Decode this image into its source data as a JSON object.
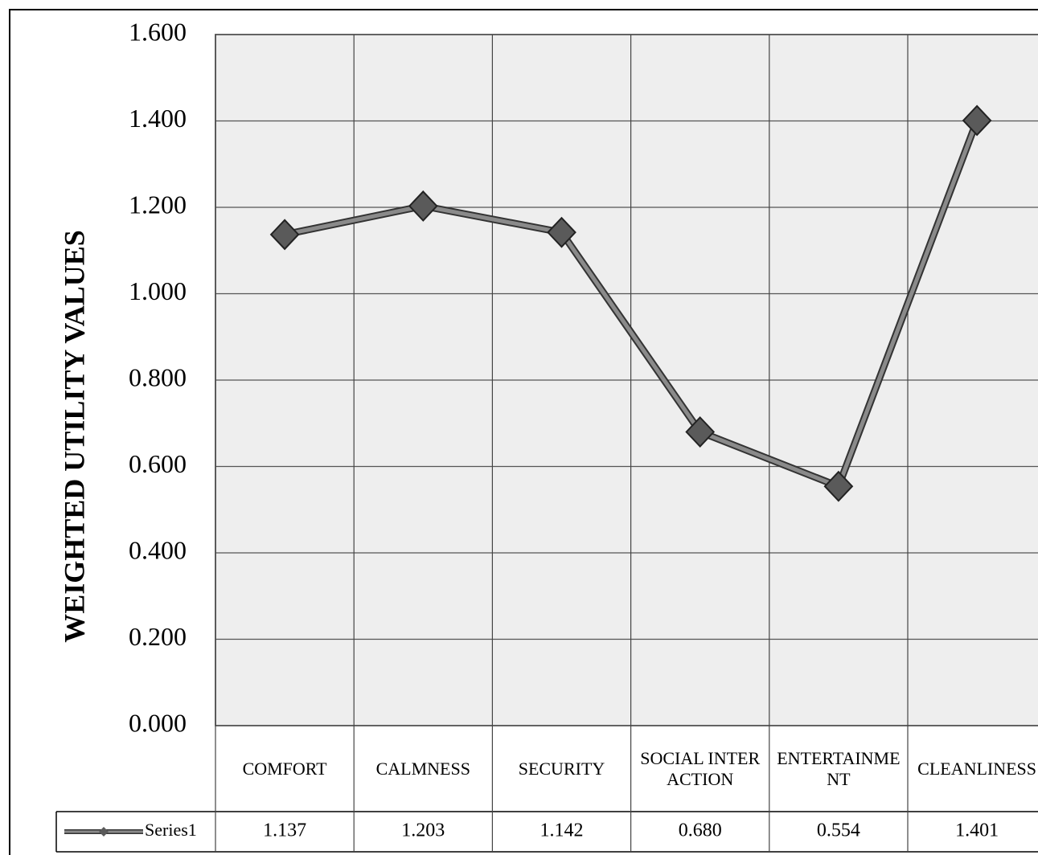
{
  "chart_data": {
    "type": "line",
    "y_label": "WEIGHTED UTILITY VALUES",
    "categories": [
      "COMFORT",
      "CALMNESS",
      "SECURITY",
      "SOCIAL INTERACTION",
      "ENTERTAINMENT",
      "CLEANLINESS"
    ],
    "series": [
      {
        "name": "Series1",
        "color": "#8a8a8a",
        "values": [
          1.137,
          1.203,
          1.142,
          0.68,
          0.554,
          1.401
        ],
        "value_labels": [
          "1.137",
          "1.203",
          "1.142",
          "0.680",
          "0.554",
          "1.401"
        ]
      }
    ],
    "ylim": [
      0,
      1.6
    ],
    "yticks": [
      {
        "value": 0,
        "label": "0.000"
      },
      {
        "value": 0.2,
        "label": "0.200"
      },
      {
        "value": 0.4,
        "label": "0.400"
      },
      {
        "value": 0.6,
        "label": "0.600"
      },
      {
        "value": 0.8,
        "label": "0.800"
      },
      {
        "value": 1,
        "label": "1.000"
      },
      {
        "value": 1.2,
        "label": "1.200"
      },
      {
        "value": 1.4,
        "label": "1.400"
      },
      {
        "value": 1.6,
        "label": "1.600"
      }
    ],
    "grid": true
  }
}
